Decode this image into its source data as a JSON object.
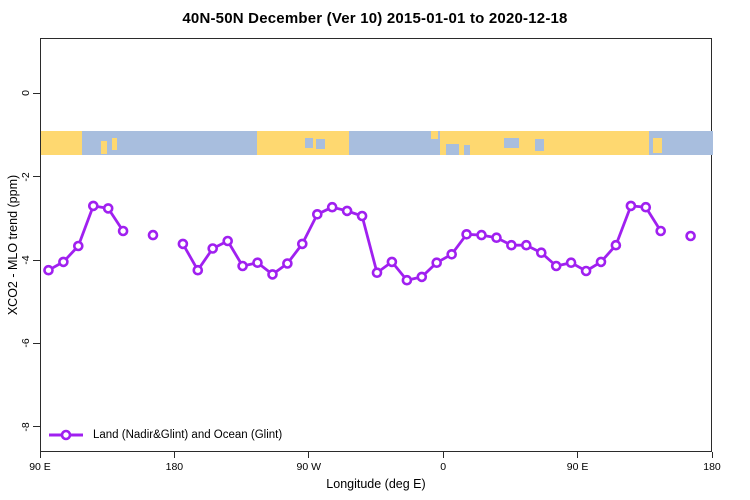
{
  "title": "40N-50N December (Ver 10)   2015-01-01 to 2020-12-18",
  "colors": {
    "series": "#A020F0",
    "land": "#FED870",
    "ocean": "#A8BEDE",
    "axis": "#2b2b2b",
    "background": "#ffffff"
  },
  "chart_data": {
    "type": "line",
    "title": "40N-50N December (Ver 10)   2015-01-01 to 2020-12-18",
    "xlabel": "Longitude (deg E)",
    "ylabel": "XCO2 - MLO trend (ppm)",
    "xlim": [
      90,
      540
    ],
    "ylim": [
      -8.6,
      1.32
    ],
    "grid": false,
    "x_ticks": [
      {
        "lon": 90,
        "label": "90 E"
      },
      {
        "lon": 180,
        "label": "180"
      },
      {
        "lon": 270,
        "label": "90 W"
      },
      {
        "lon": 360,
        "label": "0"
      },
      {
        "lon": 450,
        "label": "90 E"
      },
      {
        "lon": 540,
        "label": "180"
      }
    ],
    "y_ticks": [
      {
        "value": 0,
        "label": "0"
      },
      {
        "value": -2,
        "label": "-2"
      },
      {
        "value": -4,
        "label": "-4"
      },
      {
        "value": -6,
        "label": "-6"
      },
      {
        "value": -8,
        "label": "-8"
      }
    ],
    "legend": {
      "label": "Land (Nadir&Glint) and Ocean (Glint)",
      "position": "bottom-left",
      "marker": "open-circle-line"
    },
    "gap_threshold": 12,
    "series": [
      {
        "name": "Land (Nadir&Glint) and Ocean (Glint)",
        "color": "#A020F0",
        "marker": "open-circle",
        "points": [
          [
            95,
            -4.22
          ],
          [
            105,
            -4.02
          ],
          [
            115,
            -3.64
          ],
          [
            125,
            -2.68
          ],
          [
            135,
            -2.74
          ],
          [
            145,
            -3.28
          ],
          [
            165,
            -3.38
          ],
          [
            185,
            -3.59
          ],
          [
            195,
            -4.22
          ],
          [
            205,
            -3.7
          ],
          [
            215,
            -3.52
          ],
          [
            225,
            -4.12
          ],
          [
            235,
            -4.04
          ],
          [
            245,
            -4.32
          ],
          [
            255,
            -4.06
          ],
          [
            265,
            -3.59
          ],
          [
            275,
            -2.88
          ],
          [
            285,
            -2.71
          ],
          [
            295,
            -2.8
          ],
          [
            305,
            -2.92
          ],
          [
            315,
            -4.28
          ],
          [
            325,
            -4.02
          ],
          [
            335,
            -4.46
          ],
          [
            345,
            -4.38
          ],
          [
            355,
            -4.04
          ],
          [
            365,
            -3.84
          ],
          [
            375,
            -3.36
          ],
          [
            385,
            -3.38
          ],
          [
            395,
            -3.44
          ],
          [
            405,
            -3.62
          ],
          [
            415,
            -3.62
          ],
          [
            425,
            -3.8
          ],
          [
            435,
            -4.12
          ],
          [
            445,
            -4.04
          ],
          [
            455,
            -4.24
          ],
          [
            465,
            -4.02
          ],
          [
            475,
            -3.62
          ],
          [
            485,
            -2.68
          ],
          [
            495,
            -2.71
          ],
          [
            505,
            -3.28
          ],
          [
            525,
            -3.4
          ]
        ]
      }
    ],
    "map_strip": {
      "description": "world coastline band 40N-50N",
      "value_range": [
        -0.886,
        -1.461
      ],
      "land_color": "#FED870",
      "ocean_color": "#A8BEDE",
      "ocean_segments": [
        {
          "lon": [
            117.5,
            234.5
          ]
        },
        {
          "lon": [
            296,
            357.5
          ]
        },
        {
          "lon": [
            497,
            540
          ]
        }
      ],
      "island_segments": [
        {
          "lon": [
            130,
            134.5
          ],
          "frac": [
            0.4,
            0.95
          ]
        },
        {
          "lon": [
            137.5,
            141
          ],
          "frac": [
            0.3,
            0.8
          ]
        },
        {
          "lon": [
            351,
            356
          ],
          "frac": [
            0.0,
            0.35
          ]
        },
        {
          "lon": [
            500,
            506
          ],
          "frac": [
            0.3,
            0.9
          ]
        }
      ],
      "lake_segments": [
        {
          "lon": [
            266.5,
            272
          ],
          "frac": [
            0.3,
            0.7
          ]
        },
        {
          "lon": [
            274,
            280
          ],
          "frac": [
            0.35,
            0.75
          ]
        },
        {
          "lon": [
            361,
            370
          ],
          "frac": [
            0.55,
            1.0
          ]
        },
        {
          "lon": [
            373,
            377
          ],
          "frac": [
            0.6,
            1.0
          ]
        },
        {
          "lon": [
            400,
            410
          ],
          "frac": [
            0.3,
            0.7
          ]
        },
        {
          "lon": [
            420.5,
            427
          ],
          "frac": [
            0.35,
            0.85
          ]
        }
      ]
    }
  }
}
